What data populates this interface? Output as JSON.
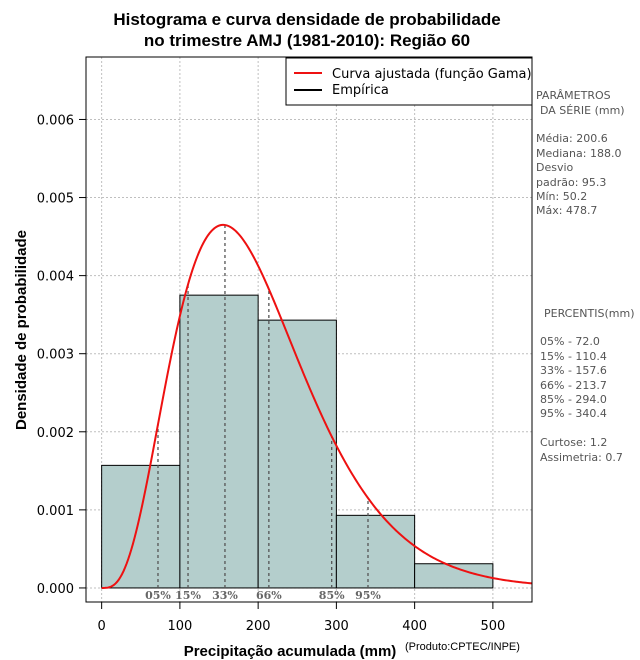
{
  "colors": {
    "bar_fill": "#b4cecc",
    "bar_stroke": "#000000",
    "curve": "#ee1111",
    "empirical": "#000000",
    "grid": "#bfbfbf",
    "percentile_line": "#555555",
    "side_text": "#555555"
  },
  "chart_data": {
    "type": "bar",
    "title_line1": "Histograma e curva densidade de probabilidade",
    "title_line2": "no trimestre AMJ (1981-2010): Região 60",
    "xlabel": "Precipitação acumulada (mm)",
    "ylabel": "Densidade de probabilidade",
    "credit": "(Produto:CPTEC/INPE)",
    "xlim": [
      -20,
      550
    ],
    "ylim": [
      -0.00018,
      0.0068
    ],
    "xticks": [
      0,
      100,
      200,
      300,
      400,
      500
    ],
    "xtick_labels": [
      "0",
      "100",
      "200",
      "300",
      "400",
      "500"
    ],
    "yticks": [
      0,
      0.001,
      0.002,
      0.003,
      0.004,
      0.005,
      0.006
    ],
    "ytick_labels": [
      "0.000",
      "0.001",
      "0.002",
      "0.003",
      "0.004",
      "0.005",
      "0.006"
    ],
    "grid": true,
    "bins": [
      {
        "start": 0,
        "end": 100,
        "density": 0.00157
      },
      {
        "start": 100,
        "end": 200,
        "density": 0.00375
      },
      {
        "start": 200,
        "end": 300,
        "density": 0.00343
      },
      {
        "start": 300,
        "end": 400,
        "density": 0.00093
      },
      {
        "start": 400,
        "end": 500,
        "density": 0.00031
      }
    ],
    "fitted_curve": {
      "distribution": "gamma",
      "mean": 200.6,
      "sd": 95.3,
      "peak_density": 0.00465,
      "x_max": 550
    },
    "percentile_markers": [
      {
        "label": "05%",
        "value": 72.0
      },
      {
        "label": "15%",
        "value": 110.4
      },
      {
        "label": "33%",
        "value": 157.6
      },
      {
        "label": "66%",
        "value": 213.7
      },
      {
        "label": "85%",
        "value": 294.0
      },
      {
        "label": "95%",
        "value": 340.4
      }
    ],
    "legend": {
      "position": "top-right",
      "entries": [
        {
          "label": "Curva ajustada (função Gama)",
          "color": "#ee1111"
        },
        {
          "label": "Empírica",
          "color": "#000000"
        }
      ]
    }
  },
  "side_panel": {
    "params_title_1": "PARÂMETROS",
    "params_title_2": "DA SÉRIE (mm)",
    "media": "Média:  200.6",
    "mediana": "Mediana:  188.0",
    "desvio_1": "Desvio",
    "desvio_2": "padrão:  95.3",
    "min": "Mín:  50.2",
    "max": "Máx:  478.7",
    "percentis_title": "PERCENTIS(mm)",
    "p05": "05% -   72.0",
    "p15": "15% -  110.4",
    "p33": "33% -  157.6",
    "p66": "66% -  213.7",
    "p85": "85% -  294.0",
    "p95": "95% -  340.4",
    "curtose": "Curtose:  1.2",
    "assimetria": "Assimetria:  0.7"
  }
}
